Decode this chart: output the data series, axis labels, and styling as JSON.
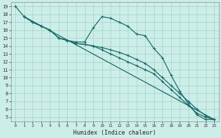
{
  "xlabel": "Humidex (Indice chaleur)",
  "background_color": "#cceee8",
  "grid_color": "#aad4cc",
  "line_color": "#1a6b6b",
  "xlim": [
    -0.5,
    23.5
  ],
  "ylim": [
    4.5,
    19.5
  ],
  "xticks": [
    0,
    1,
    2,
    3,
    4,
    5,
    6,
    7,
    8,
    9,
    10,
    11,
    12,
    13,
    14,
    15,
    16,
    17,
    18,
    19,
    20,
    21,
    22,
    23
  ],
  "yticks": [
    5,
    6,
    7,
    8,
    9,
    10,
    11,
    12,
    13,
    14,
    15,
    16,
    17,
    18,
    19
  ],
  "line1_x": [
    0,
    1,
    2,
    3,
    4,
    5,
    6,
    7,
    8,
    9,
    10,
    11,
    12,
    13,
    14,
    15,
    16,
    17,
    18,
    19,
    20,
    21,
    22,
    23
  ],
  "line1_y": [
    19,
    17.7,
    17,
    16.5,
    16,
    15,
    14.7,
    14.5,
    14.5,
    16.3,
    17.7,
    17.5,
    17,
    16.5,
    15.5,
    15.3,
    13.7,
    12.5,
    10.3,
    8.3,
    6.7,
    5.3,
    4.7,
    4.7
  ],
  "line2_x": [
    1,
    23
  ],
  "line2_y": [
    17.7,
    4.7
  ],
  "line3_x": [
    1,
    2,
    3,
    4,
    5,
    6,
    7,
    8,
    9,
    10,
    11,
    12,
    13,
    14,
    15,
    16,
    17,
    18,
    19,
    20,
    21,
    22,
    23
  ],
  "line3_y": [
    17.7,
    17,
    16.5,
    16,
    15,
    14.7,
    14.3,
    14.2,
    14.0,
    13.8,
    13.5,
    13.2,
    12.8,
    12.3,
    11.8,
    11.0,
    10.0,
    9.0,
    8.0,
    7.0,
    6.0,
    5.2,
    4.7
  ],
  "line4_x": [
    1,
    2,
    3,
    4,
    5,
    6,
    7,
    8,
    9,
    10,
    11,
    12,
    13,
    14,
    15,
    16,
    17,
    18,
    19,
    20,
    21,
    22,
    23
  ],
  "line4_y": [
    17.7,
    17,
    16.5,
    16,
    15,
    14.7,
    14.3,
    14.2,
    14.0,
    13.5,
    13.0,
    12.5,
    12.0,
    11.5,
    11.0,
    10.5,
    9.5,
    8.5,
    7.5,
    6.5,
    5.5,
    5.0,
    4.7
  ]
}
